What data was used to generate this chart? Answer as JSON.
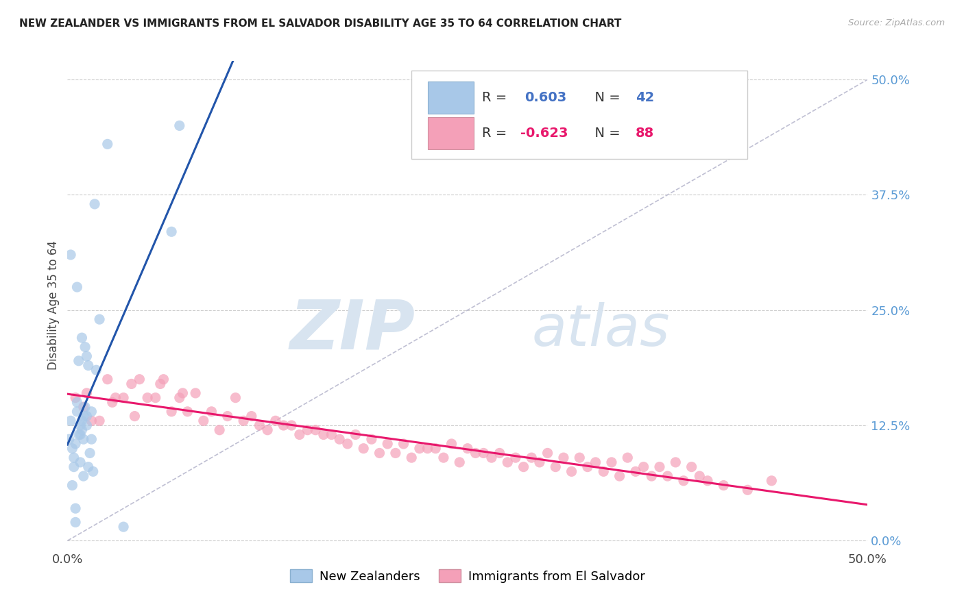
{
  "title": "NEW ZEALANDER VS IMMIGRANTS FROM EL SALVADOR DISABILITY AGE 35 TO 64 CORRELATION CHART",
  "source": "Source: ZipAtlas.com",
  "ylabel": "Disability Age 35 to 64",
  "ytick_values": [
    0.0,
    12.5,
    25.0,
    37.5,
    50.0
  ],
  "xlim": [
    0.0,
    50.0
  ],
  "ylim": [
    -1.0,
    52.0
  ],
  "nz_color": "#a8c8e8",
  "es_color": "#f4a0b8",
  "nz_line_color": "#2255aa",
  "es_line_color": "#e8186c",
  "diagonal_color": "#b0b0c8",
  "R_nz": 0.603,
  "N_nz": 42,
  "R_es": -0.623,
  "N_es": 88,
  "legend_label_nz": "New Zealanders",
  "legend_label_es": "Immigrants from El Salvador",
  "watermark_zip": "ZIP",
  "watermark_atlas": "atlas",
  "nz_scatter_x": [
    0.5,
    1.0,
    1.5,
    0.8,
    1.2,
    0.3,
    0.6,
    0.9,
    1.1,
    0.4,
    0.7,
    2.0,
    1.8,
    1.3,
    1.6,
    0.2,
    0.5,
    0.8,
    1.0,
    1.4,
    0.6,
    1.2,
    0.9,
    1.5,
    0.3,
    0.7,
    1.1,
    0.4,
    0.8,
    1.3,
    0.5,
    1.0,
    1.7,
    2.5,
    7.0,
    6.5,
    0.2,
    0.6,
    0.9,
    1.2,
    3.5,
    0.1
  ],
  "nz_scatter_y": [
    10.5,
    11.0,
    14.0,
    8.5,
    13.5,
    6.0,
    14.0,
    13.0,
    21.0,
    8.0,
    19.5,
    24.0,
    18.5,
    19.0,
    7.5,
    13.0,
    3.5,
    11.5,
    13.5,
    9.5,
    15.0,
    12.5,
    12.0,
    11.0,
    10.0,
    11.5,
    14.5,
    9.0,
    12.5,
    8.0,
    2.0,
    7.0,
    36.5,
    43.0,
    45.0,
    33.5,
    31.0,
    27.5,
    22.0,
    20.0,
    1.5,
    11.0
  ],
  "es_scatter_x": [
    0.5,
    1.2,
    2.5,
    3.5,
    4.0,
    5.0,
    6.5,
    7.0,
    8.0,
    9.0,
    10.0,
    11.0,
    12.0,
    13.0,
    14.0,
    15.0,
    16.0,
    17.0,
    18.0,
    19.0,
    20.0,
    21.0,
    22.0,
    23.0,
    24.0,
    25.0,
    26.0,
    27.0,
    28.0,
    29.0,
    30.0,
    31.0,
    32.0,
    33.0,
    34.0,
    35.0,
    36.0,
    37.0,
    38.0,
    39.0,
    1.0,
    2.0,
    3.0,
    4.5,
    5.5,
    6.0,
    7.5,
    8.5,
    9.5,
    10.5,
    11.5,
    12.5,
    13.5,
    14.5,
    15.5,
    16.5,
    17.5,
    18.5,
    19.5,
    20.5,
    21.5,
    22.5,
    23.5,
    24.5,
    25.5,
    26.5,
    27.5,
    28.5,
    29.5,
    30.5,
    31.5,
    32.5,
    33.5,
    34.5,
    35.5,
    36.5,
    37.5,
    38.5,
    39.5,
    40.0,
    41.0,
    42.5,
    44.0,
    1.5,
    2.8,
    4.2,
    5.8,
    7.2
  ],
  "es_scatter_y": [
    15.5,
    16.0,
    17.5,
    15.5,
    17.0,
    15.5,
    14.0,
    15.5,
    16.0,
    14.0,
    13.5,
    13.0,
    12.5,
    13.0,
    12.5,
    12.0,
    11.5,
    11.0,
    11.5,
    11.0,
    10.5,
    10.5,
    10.0,
    10.0,
    10.5,
    10.0,
    9.5,
    9.5,
    9.0,
    9.0,
    9.5,
    9.0,
    9.0,
    8.5,
    8.5,
    9.0,
    8.0,
    8.0,
    8.5,
    8.0,
    14.5,
    13.0,
    15.5,
    17.5,
    15.5,
    17.5,
    14.0,
    13.0,
    12.0,
    15.5,
    13.5,
    12.0,
    12.5,
    11.5,
    12.0,
    11.5,
    10.5,
    10.0,
    9.5,
    9.5,
    9.0,
    10.0,
    9.0,
    8.5,
    9.5,
    9.0,
    8.5,
    8.0,
    8.5,
    8.0,
    7.5,
    8.0,
    7.5,
    7.0,
    7.5,
    7.0,
    7.0,
    6.5,
    7.0,
    6.5,
    6.0,
    5.5,
    6.5,
    13.0,
    15.0,
    13.5,
    17.0,
    16.0
  ]
}
